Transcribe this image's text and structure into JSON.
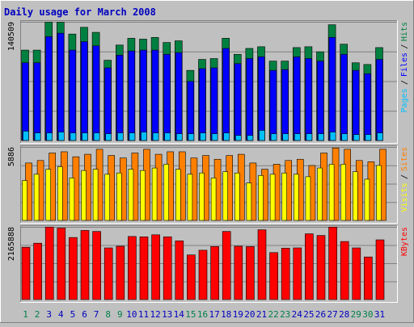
{
  "title": "Daily usage for March 2008",
  "colors": {
    "background": "#C0C0C0",
    "plot_area": "#C0C0C0",
    "title_text": "#0000C0",
    "hits": "#008040",
    "files": "#0000FF",
    "pages": "#00C0FF",
    "visits": "#FFFF00",
    "sites": "#FF8000",
    "kbytes": "#FF0000",
    "weekend_day": "#00804A",
    "weekday_day": "#0000C0"
  },
  "chart_data": [
    {
      "type": "bar",
      "title": "Daily usage for March 2008",
      "categories": [
        "1",
        "2",
        "3",
        "4",
        "5",
        "6",
        "7",
        "8",
        "9",
        "10",
        "11",
        "12",
        "13",
        "14",
        "15",
        "16",
        "17",
        "18",
        "19",
        "20",
        "21",
        "22",
        "23",
        "24",
        "25",
        "26",
        "27",
        "28",
        "29",
        "30",
        "31"
      ],
      "weekend_days": [
        1,
        2,
        8,
        9,
        15,
        16,
        22,
        23,
        29,
        30
      ],
      "ylim": [
        0,
        140509
      ],
      "max_label": "140509",
      "legend": [
        "Hits",
        "/",
        "Files",
        "/",
        "Pages"
      ],
      "series": [
        {
          "name": "Hits",
          "values": [
            107000,
            107000,
            140000,
            140000,
            126000,
            134000,
            128000,
            95000,
            113000,
            121000,
            120000,
            122000,
            116000,
            118000,
            83000,
            96000,
            97000,
            121000,
            102000,
            109000,
            111000,
            94000,
            94000,
            110000,
            111000,
            105000,
            137000,
            114000,
            92000,
            90000,
            110000
          ]
        },
        {
          "name": "Files",
          "values": [
            92000,
            92000,
            123000,
            127000,
            107000,
            117000,
            112000,
            86000,
            101000,
            106000,
            107000,
            107000,
            102000,
            104000,
            70000,
            85000,
            86000,
            109000,
            91000,
            97000,
            99000,
            83000,
            84000,
            99000,
            97000,
            94000,
            122000,
            102000,
            83000,
            79000,
            96000
          ]
        },
        {
          "name": "Pages",
          "values": [
            11000,
            9000,
            9000,
            10000,
            9000,
            9000,
            9000,
            8000,
            9000,
            9000,
            10000,
            9000,
            9000,
            8000,
            8000,
            9000,
            8000,
            9000,
            6000,
            6000,
            12000,
            8000,
            8000,
            8000,
            8000,
            8000,
            10000,
            8000,
            7000,
            7000,
            9000
          ]
        }
      ]
    },
    {
      "type": "bar",
      "categories": [
        "1",
        "2",
        "3",
        "4",
        "5",
        "6",
        "7",
        "8",
        "9",
        "10",
        "11",
        "12",
        "13",
        "14",
        "15",
        "16",
        "17",
        "18",
        "19",
        "20",
        "21",
        "22",
        "23",
        "24",
        "25",
        "26",
        "27",
        "28",
        "29",
        "30",
        "31"
      ],
      "ylim": [
        0,
        5886
      ],
      "max_label": "5886",
      "legend": [
        "Sites",
        "/",
        "Visits"
      ],
      "series": [
        {
          "name": "Sites",
          "values": [
            4600,
            4800,
            5400,
            5500,
            5100,
            5300,
            5700,
            5200,
            5000,
            5400,
            5700,
            5300,
            5500,
            5500,
            5000,
            5200,
            4900,
            5200,
            5300,
            4600,
            4100,
            4500,
            4800,
            4900,
            4400,
            5400,
            5800,
            5700,
            4800,
            4700,
            5700
          ]
        },
        {
          "name": "Visits",
          "values": [
            3200,
            3700,
            4100,
            4300,
            3400,
            4000,
            4100,
            3700,
            3800,
            4100,
            4000,
            4200,
            4500,
            4100,
            3700,
            3800,
            3400,
            3900,
            3800,
            3000,
            3600,
            3700,
            3800,
            3700,
            3500,
            4200,
            4500,
            4500,
            3900,
            3300,
            4400
          ]
        }
      ]
    },
    {
      "type": "bar",
      "categories": [
        "1",
        "2",
        "3",
        "4",
        "5",
        "6",
        "7",
        "8",
        "9",
        "10",
        "11",
        "12",
        "13",
        "14",
        "15",
        "16",
        "17",
        "18",
        "19",
        "20",
        "21",
        "22",
        "23",
        "24",
        "25",
        "26",
        "27",
        "28",
        "29",
        "30",
        "31"
      ],
      "ylim": [
        0,
        2165888
      ],
      "max_label": "2165888",
      "legend": [
        "KBytes"
      ],
      "series": [
        {
          "name": "KBytes",
          "values": [
            1560000,
            1680000,
            2160000,
            2130000,
            1850000,
            2060000,
            2030000,
            1540000,
            1590000,
            1880000,
            1870000,
            1930000,
            1870000,
            1750000,
            1330000,
            1470000,
            1580000,
            2030000,
            1590000,
            1580000,
            2080000,
            1400000,
            1530000,
            1540000,
            1960000,
            1910000,
            2160000,
            1730000,
            1540000,
            1270000,
            1780000
          ]
        }
      ]
    }
  ]
}
